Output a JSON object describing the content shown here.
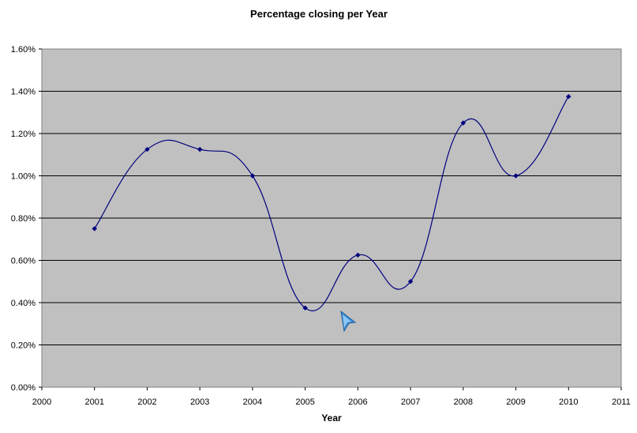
{
  "chart_data": {
    "type": "line",
    "title": "Percentage closing per Year",
    "xlabel": "Year",
    "ylabel": "",
    "x": [
      2001,
      2002,
      2003,
      2004,
      2005,
      2006,
      2007,
      2008,
      2009,
      2010
    ],
    "series": [
      {
        "values": [
          0.0075,
          0.01125,
          0.01125,
          0.01,
          0.00375,
          0.00625,
          0.005,
          0.0125,
          0.01,
          0.01375
        ]
      }
    ],
    "xlim": [
      2000,
      2011
    ],
    "ylim": [
      0,
      0.016
    ],
    "x_ticks": [
      "2000",
      "2001",
      "2002",
      "2003",
      "2004",
      "2005",
      "2006",
      "2007",
      "2008",
      "2009",
      "2010",
      "2011"
    ],
    "y_ticks": [
      "0.00%",
      "0.20%",
      "0.40%",
      "0.60%",
      "0.80%",
      "1.00%",
      "1.20%",
      "1.40%",
      "1.60%"
    ],
    "grid": "horizontal",
    "smoothed": true,
    "colors": {
      "plot_background": "#c0c0c0",
      "line": "#00007f",
      "gridline": "#000000"
    }
  },
  "cursor": {
    "icon": "mouse-pointer-arrow-icon",
    "color": "#3a8fd6"
  }
}
